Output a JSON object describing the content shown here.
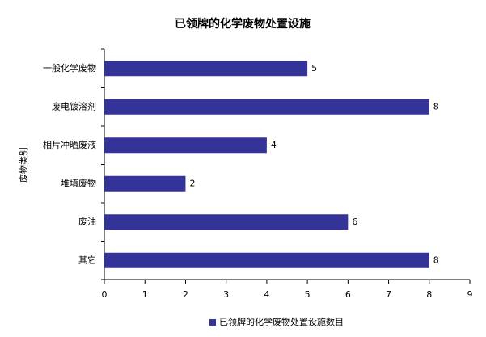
{
  "chart_data": {
    "type": "bar",
    "orientation": "horizontal",
    "title": "已领牌的化学废物处置设施",
    "y_label": "废物类别",
    "categories": [
      "一般化学废物",
      "废电镀溶剂",
      "相片冲晒废液",
      "堆填废物",
      "废油",
      "其它"
    ],
    "series": [
      {
        "name": "已领牌的化学废物处置设施数目",
        "color": "#333399",
        "values": [
          5,
          8,
          4,
          2,
          6,
          8
        ]
      }
    ],
    "xlim": [
      0,
      9
    ],
    "xticks": [
      0,
      1,
      2,
      3,
      4,
      5,
      6,
      7,
      8,
      9
    ],
    "legend": "bottom"
  }
}
